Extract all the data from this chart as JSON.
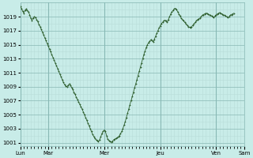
{
  "background_color": "#c8ece8",
  "plot_bg_color": "#c8ece8",
  "grid_color_minor": "#b8dcd8",
  "grid_color_major": "#88b8b4",
  "line_color": "#2d5e2d",
  "marker_color": "#2d5e2d",
  "ylim": [
    1000.5,
    1021.0
  ],
  "yticks": [
    1001,
    1003,
    1005,
    1007,
    1009,
    1011,
    1013,
    1015,
    1017,
    1019
  ],
  "day_labels": [
    "Lun",
    "Mar",
    "Mer",
    "Jeu",
    "Ven",
    "Sam"
  ],
  "day_tick_positions": [
    0,
    24,
    72,
    120,
    168,
    192
  ],
  "total_hours": 204,
  "pressure_data": [
    1020.5,
    1020.2,
    1019.8,
    1019.5,
    1019.9,
    1020.1,
    1019.9,
    1019.7,
    1019.3,
    1018.8,
    1018.5,
    1018.8,
    1019.0,
    1018.9,
    1018.6,
    1018.3,
    1017.9,
    1017.6,
    1017.2,
    1016.8,
    1016.4,
    1016.0,
    1015.6,
    1015.2,
    1014.8,
    1014.4,
    1014.0,
    1013.6,
    1013.2,
    1012.8,
    1012.4,
    1012.0,
    1011.6,
    1011.2,
    1010.8,
    1010.4,
    1010.0,
    1009.6,
    1009.3,
    1009.1,
    1009.0,
    1009.2,
    1009.4,
    1009.2,
    1008.9,
    1008.6,
    1008.2,
    1007.9,
    1007.5,
    1007.2,
    1006.8,
    1006.5,
    1006.1,
    1005.8,
    1005.4,
    1005.0,
    1004.6,
    1004.2,
    1003.8,
    1003.4,
    1003.0,
    1002.6,
    1002.2,
    1001.9,
    1001.6,
    1001.4,
    1001.3,
    1001.2,
    1001.4,
    1001.8,
    1002.3,
    1002.6,
    1002.8,
    1002.6,
    1002.0,
    1001.5,
    1001.3,
    1001.2,
    1001.1,
    1001.2,
    1001.4,
    1001.5,
    1001.6,
    1001.7,
    1001.8,
    1002.0,
    1002.3,
    1002.6,
    1003.0,
    1003.5,
    1004.0,
    1004.6,
    1005.2,
    1005.8,
    1006.4,
    1007.0,
    1007.6,
    1008.2,
    1008.8,
    1009.4,
    1010.0,
    1010.6,
    1011.2,
    1011.8,
    1012.4,
    1013.0,
    1013.6,
    1014.1,
    1014.6,
    1015.0,
    1015.3,
    1015.5,
    1015.7,
    1015.6,
    1015.4,
    1015.8,
    1016.2,
    1016.6,
    1017.0,
    1017.4,
    1017.7,
    1018.0,
    1018.2,
    1018.4,
    1018.5,
    1018.4,
    1018.2,
    1018.6,
    1019.0,
    1019.4,
    1019.7,
    1019.9,
    1020.1,
    1020.2,
    1020.0,
    1019.7,
    1019.4,
    1019.1,
    1018.8,
    1018.6,
    1018.4,
    1018.2,
    1018.0,
    1017.8,
    1017.6,
    1017.5,
    1017.4,
    1017.6,
    1017.8,
    1018.0,
    1018.2,
    1018.4,
    1018.6,
    1018.7,
    1018.8,
    1019.0,
    1019.2,
    1019.3,
    1019.4,
    1019.5,
    1019.5,
    1019.4,
    1019.3,
    1019.2,
    1019.1,
    1019.0,
    1018.9,
    1019.1,
    1019.3,
    1019.4,
    1019.5,
    1019.6,
    1019.5,
    1019.4,
    1019.3,
    1019.2,
    1019.1,
    1019.0,
    1018.9,
    1019.0,
    1019.2,
    1019.3,
    1019.4,
    1019.5
  ]
}
